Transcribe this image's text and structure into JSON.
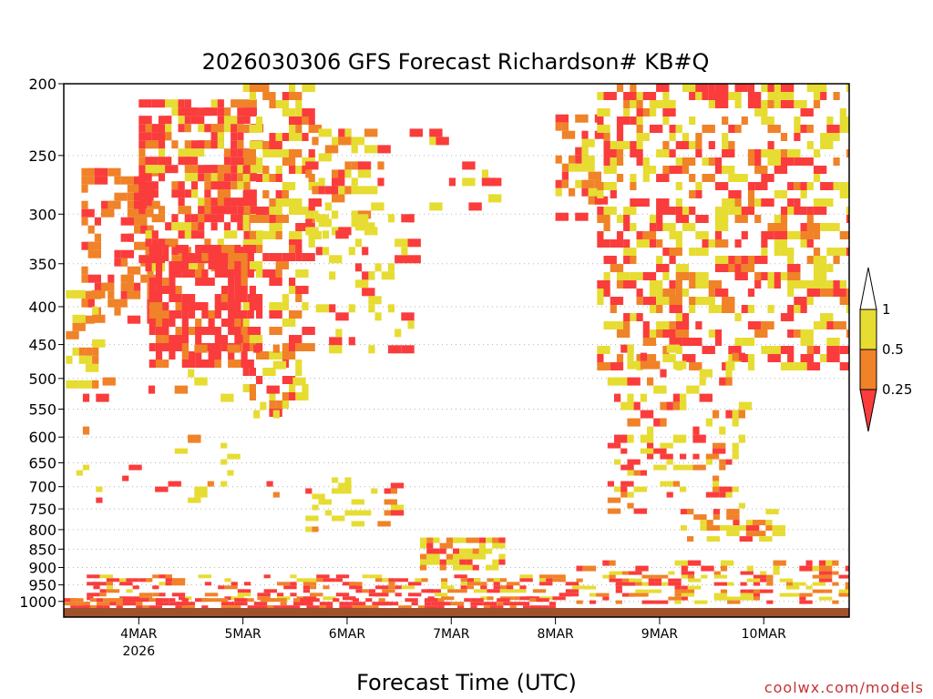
{
  "chart_data": {
    "type": "heatmap",
    "title": "2026030306 GFS Forecast Richardson# KB#Q",
    "xlabel": "Forecast Time (UTC)",
    "ylabel": "",
    "y_scale": "pressure (hPa), inverted",
    "ylim": [
      1050,
      200
    ],
    "xlim_days": [
      3.28,
      10.82
    ],
    "grid": "dotted horizontal at pressure ticks",
    "y_ticks": [
      200,
      250,
      300,
      350,
      400,
      450,
      500,
      550,
      600,
      650,
      700,
      750,
      800,
      850,
      900,
      950,
      1000
    ],
    "x_ticks": [
      {
        "day": 4,
        "label": "4MAR",
        "sublabel": "2026"
      },
      {
        "day": 5,
        "label": "5MAR"
      },
      {
        "day": 6,
        "label": "6MAR"
      },
      {
        "day": 7,
        "label": "7MAR"
      },
      {
        "day": 8,
        "label": "8MAR"
      },
      {
        "day": 9,
        "label": "9MAR"
      },
      {
        "day": 10,
        "label": "10MAR"
      }
    ],
    "legend": {
      "placement": "right",
      "labels": [
        "1",
        "0.5",
        "0.25"
      ],
      "bins": [
        {
          "range": "0.5-1",
          "color": "#e6dc32"
        },
        {
          "range": "0.25-0.5",
          "color": "#f08228"
        },
        {
          "range": "<0.25",
          "color": "#fa3c3c"
        }
      ]
    },
    "colors": {
      "high": "#e6dc32",
      "mid": "#f08228",
      "low": "#fa3c3c",
      "ground": "#a0522d"
    },
    "regions": [
      {
        "t": [
          3.45,
          4.1
        ],
        "p": [
          260,
          420
        ],
        "d": 0.45,
        "c": [
          1,
          1,
          2
        ]
      },
      {
        "t": [
          3.3,
          3.6
        ],
        "p": [
          380,
          520
        ],
        "d": 0.35,
        "c": [
          0,
          0,
          1
        ]
      },
      {
        "t": [
          4.0,
          5.1
        ],
        "p": [
          210,
          350
        ],
        "d": 0.55,
        "c": [
          0,
          1,
          2,
          2,
          2
        ]
      },
      {
        "t": [
          4.1,
          5.1
        ],
        "p": [
          330,
          480
        ],
        "d": 0.65,
        "c": [
          1,
          2,
          2,
          2
        ]
      },
      {
        "t": [
          5.0,
          5.65
        ],
        "p": [
          200,
          330
        ],
        "d": 0.45,
        "c": [
          0,
          0,
          1,
          2
        ]
      },
      {
        "t": [
          5.0,
          5.6
        ],
        "p": [
          330,
          560
        ],
        "d": 0.35,
        "c": [
          0,
          1,
          2
        ]
      },
      {
        "t": [
          5.6,
          6.3
        ],
        "p": [
          230,
          320
        ],
        "d": 0.3,
        "c": [
          0,
          0,
          1,
          2
        ]
      },
      {
        "t": [
          5.7,
          6.6
        ],
        "p": [
          300,
          460
        ],
        "d": 0.15,
        "c": [
          0,
          0,
          2
        ]
      },
      {
        "t": [
          3.4,
          5.5
        ],
        "p": [
          450,
          760
        ],
        "d": 0.05,
        "c": [
          0,
          0,
          0,
          1,
          2
        ]
      },
      {
        "t": [
          6.6,
          7.6
        ],
        "p": [
          230,
          290
        ],
        "d": 0.08,
        "c": [
          0,
          2
        ]
      },
      {
        "t": [
          8.0,
          8.4
        ],
        "p": [
          220,
          300
        ],
        "d": 0.3,
        "c": [
          0,
          1,
          2
        ]
      },
      {
        "t": [
          8.4,
          10.8
        ],
        "p": [
          200,
          480
        ],
        "d": 0.35,
        "c": [
          0,
          0,
          1,
          2,
          2
        ]
      },
      {
        "t": [
          8.5,
          9.8
        ],
        "p": [
          450,
          760
        ],
        "d": 0.2,
        "c": [
          0,
          0,
          1,
          2
        ]
      },
      {
        "t": [
          9.2,
          10.2
        ],
        "p": [
          750,
          830
        ],
        "d": 0.25,
        "c": [
          0,
          1,
          2
        ]
      },
      {
        "t": [
          5.6,
          6.5
        ],
        "p": [
          680,
          800
        ],
        "d": 0.2,
        "c": [
          0,
          0,
          1,
          2
        ]
      },
      {
        "t": [
          6.7,
          7.5
        ],
        "p": [
          820,
          900
        ],
        "d": 0.5,
        "c": [
          0,
          0,
          1,
          2
        ]
      },
      {
        "t": [
          3.5,
          8.2
        ],
        "p": [
          920,
          990
        ],
        "d": 0.35,
        "c": [
          0,
          1,
          2,
          2
        ]
      },
      {
        "t": [
          8.2,
          10.8
        ],
        "p": [
          880,
          1000
        ],
        "d": 0.3,
        "c": [
          0,
          1,
          2
        ]
      },
      {
        "t": [
          3.28,
          8.0
        ],
        "p": [
          990,
          1020
        ],
        "d": 0.55,
        "c": [
          2,
          2,
          1
        ]
      }
    ]
  },
  "credit": "coolwx.com/models"
}
